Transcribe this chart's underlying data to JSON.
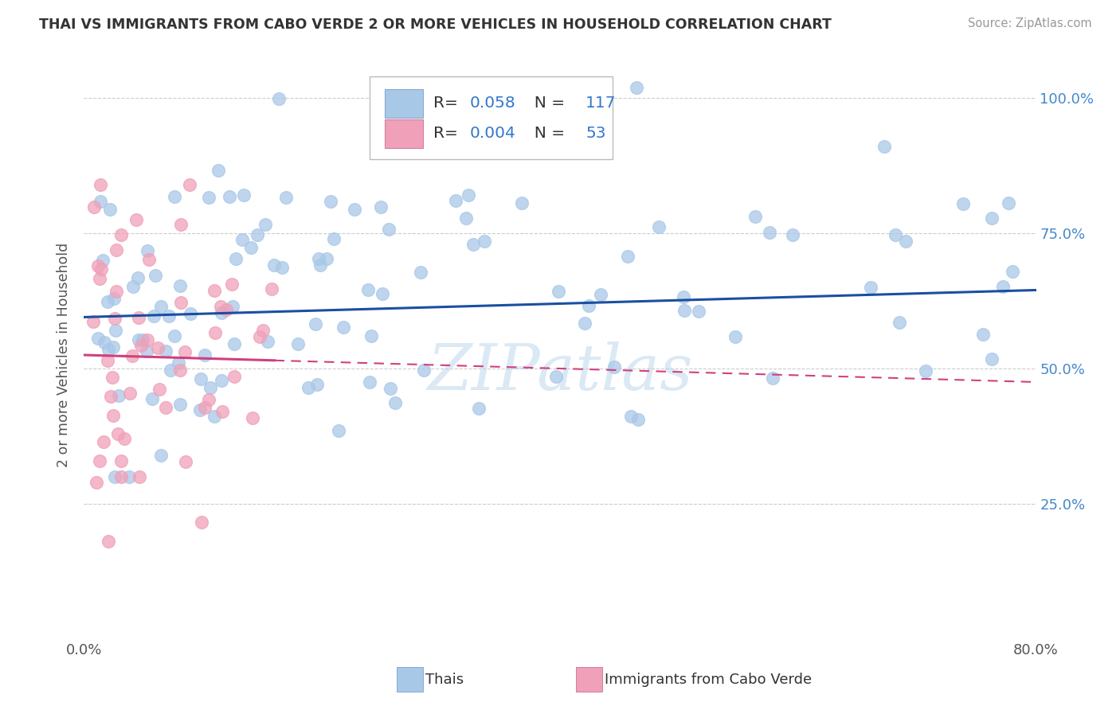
{
  "title": "THAI VS IMMIGRANTS FROM CABO VERDE 2 OR MORE VEHICLES IN HOUSEHOLD CORRELATION CHART",
  "source": "Source: ZipAtlas.com",
  "ylabel": "2 or more Vehicles in Household",
  "R1": "0.058",
  "N1": "117",
  "R2": "0.004",
  "N2": "53",
  "color_blue": "#a8c8e8",
  "color_pink": "#f0a0b8",
  "line_blue": "#1a4fa0",
  "line_pink": "#d04080",
  "watermark": "ZIPatlas",
  "legend_label1": "Thais",
  "legend_label2": "Immigrants from Cabo Verde",
  "xlim": [
    0.0,
    0.8
  ],
  "ylim": [
    0.0,
    1.05
  ],
  "blue_line_start_y": 0.595,
  "blue_line_end_y": 0.645,
  "pink_line_start_y": 0.525,
  "pink_line_end_y": 0.515,
  "pink_line_end_x": 0.16
}
